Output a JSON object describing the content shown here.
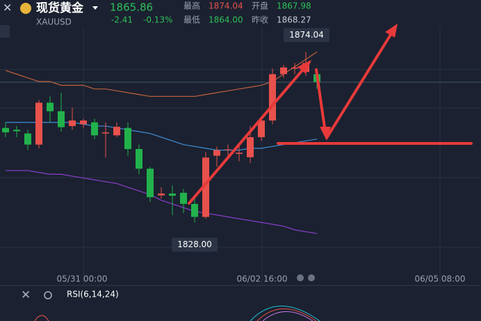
{
  "header": {
    "title": "现货黄金",
    "symbol": "XAUUSD",
    "price": "1865.86",
    "change": "-2.41",
    "change_pct": "-0.13%",
    "stats": [
      {
        "label": "最高",
        "value": "1874.04"
      },
      {
        "label": "开盘",
        "value": "1867.98"
      },
      {
        "label": "最低",
        "value": "1864.00"
      },
      {
        "label": "昨收",
        "value": "1868.27"
      }
    ]
  },
  "chart_data": {
    "type": "candlestick",
    "open": [
      1853.5,
      1853,
      1852,
      1849,
      1860.3,
      1858,
      1854,
      1854.5,
      1855,
      1852,
      1851.5,
      1853.5,
      1847.8,
      1842.5,
      1835.3,
      1835.8,
      1836,
      1833,
      1829.5,
      1846,
      1847.5,
      1846.5,
      1845.6,
      1851,
      1855.5,
      1868,
      1869.5,
      1868.6,
      1867.98
    ],
    "high": [
      1855,
      1854,
      1853,
      1861,
      1862,
      1863,
      1859,
      1856,
      1856,
      1855,
      1855,
      1855,
      1849,
      1843,
      1837.5,
      1838,
      1837,
      1834.5,
      1847,
      1848.5,
      1849,
      1848.5,
      1854,
      1856,
      1869.5,
      1870.5,
      1871,
      1874.04,
      1868.5
    ],
    "low": [
      1851,
      1851,
      1847.5,
      1848,
      1855,
      1852.5,
      1853,
      1853.5,
      1850.5,
      1845.5,
      1851,
      1846,
      1841,
      1833.5,
      1834.5,
      1830,
      1830.5,
      1828,
      1829,
      1843,
      1845,
      1844.5,
      1844,
      1850,
      1854.5,
      1867,
      1868,
      1867.5,
      1864.0
    ],
    "close": [
      1852.3,
      1852.6,
      1849,
      1860.3,
      1858,
      1853.7,
      1855.5,
      1855.5,
      1851.5,
      1852.3,
      1853.8,
      1847.8,
      1842.5,
      1834.8,
      1835.8,
      1835.2,
      1833,
      1829.5,
      1845.5,
      1847.5,
      1847.7,
      1846.8,
      1851,
      1855.5,
      1868,
      1869.8,
      1869.8,
      1871,
      1865.86
    ],
    "ylim": [
      1811,
      1888
    ],
    "up_color": "#e8514c",
    "down_color": "#22b24c",
    "series": [
      {
        "color": "#c0603e",
        "values": [
          1869,
          1868,
          1867,
          1866,
          1866,
          1865,
          1865,
          1865,
          1864,
          1864,
          1863.5,
          1863,
          1862.5,
          1862,
          1862,
          1862,
          1862,
          1862,
          1862.5,
          1863,
          1863.5,
          1864,
          1864.5,
          1865,
          1866,
          1868,
          1870,
          1872,
          1874
        ]
      },
      {
        "color": "#3f8fd8",
        "values": [
          1855,
          1855,
          1855,
          1855,
          1855,
          1855,
          1855,
          1854.5,
          1854,
          1854,
          1853.5,
          1853,
          1852.5,
          1852,
          1851,
          1850,
          1849,
          1848.5,
          1848,
          1847.5,
          1847.5,
          1847.5,
          1848,
          1848,
          1848.5,
          1849,
          1849.5,
          1850,
          1850.5
        ]
      },
      {
        "color": "#8a3fd0",
        "values": [
          1842,
          1842,
          1842,
          1841.5,
          1841,
          1841,
          1840.5,
          1840,
          1839.5,
          1839,
          1838.5,
          1837.5,
          1836.5,
          1835.5,
          1834,
          1833,
          1832,
          1831,
          1830.5,
          1830,
          1829.5,
          1829,
          1828.5,
          1828,
          1827.5,
          1827,
          1826,
          1825.5,
          1825
        ]
      }
    ],
    "annotations": [
      {
        "value": 1874.04,
        "label": "1874.04"
      },
      {
        "value": 1828,
        "label": "1828.00"
      }
    ],
    "time_labels": [
      "05/31 00:00",
      "06/02 16:00",
      "06/05 08:00"
    ]
  },
  "indicator": {
    "label": "RSI(6,14,24)"
  }
}
